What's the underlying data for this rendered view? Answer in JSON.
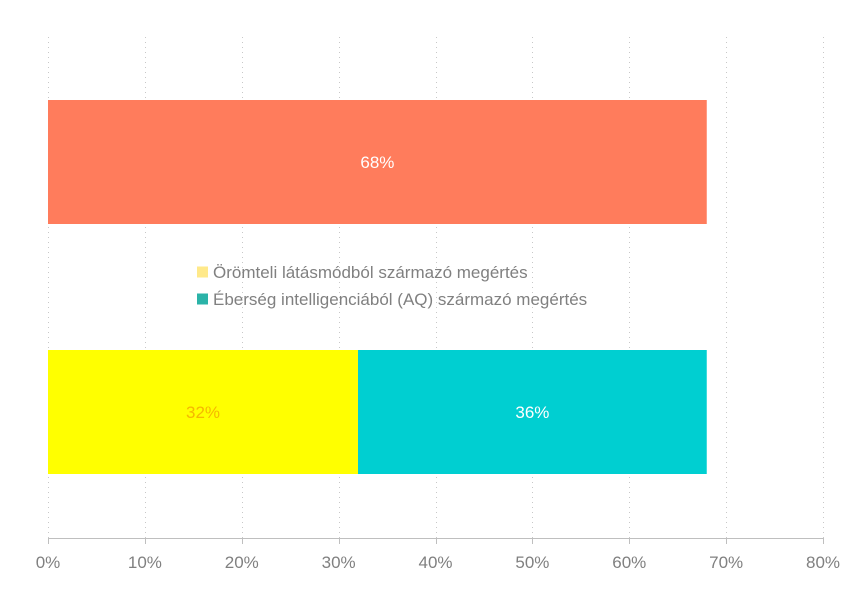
{
  "chart_data": {
    "type": "bar",
    "orientation": "horizontal",
    "stacked": true,
    "xlim": [
      0,
      80
    ],
    "x_unit": "%",
    "x_ticks": [
      0,
      10,
      20,
      30,
      40,
      50,
      60,
      70,
      80
    ],
    "x_tick_labels": [
      "0%",
      "10%",
      "20%",
      "30%",
      "40%",
      "50%",
      "60%",
      "70%",
      "80%"
    ],
    "grid": "vertical-dotted",
    "legend_position": "center",
    "bars": [
      {
        "segments": [
          {
            "value": 68,
            "label": "68%",
            "color": "#ff7c5c",
            "label_color": "#ffffff"
          }
        ]
      },
      {
        "segments": [
          {
            "value": 32,
            "label": "32%",
            "color": "#ffff00",
            "label_color": "#f5b800",
            "series": 0
          },
          {
            "value": 36,
            "label": "36%",
            "color": "#00cfd1",
            "label_color": "#ffffff",
            "series": 1
          }
        ]
      }
    ],
    "legend": [
      {
        "name": "Örömteli látásmódból származó megértés",
        "color": "#ffe98a"
      },
      {
        "name": "Éberség intelligenciából (AQ) származó megértés",
        "color": "#2bb3a8"
      }
    ]
  }
}
